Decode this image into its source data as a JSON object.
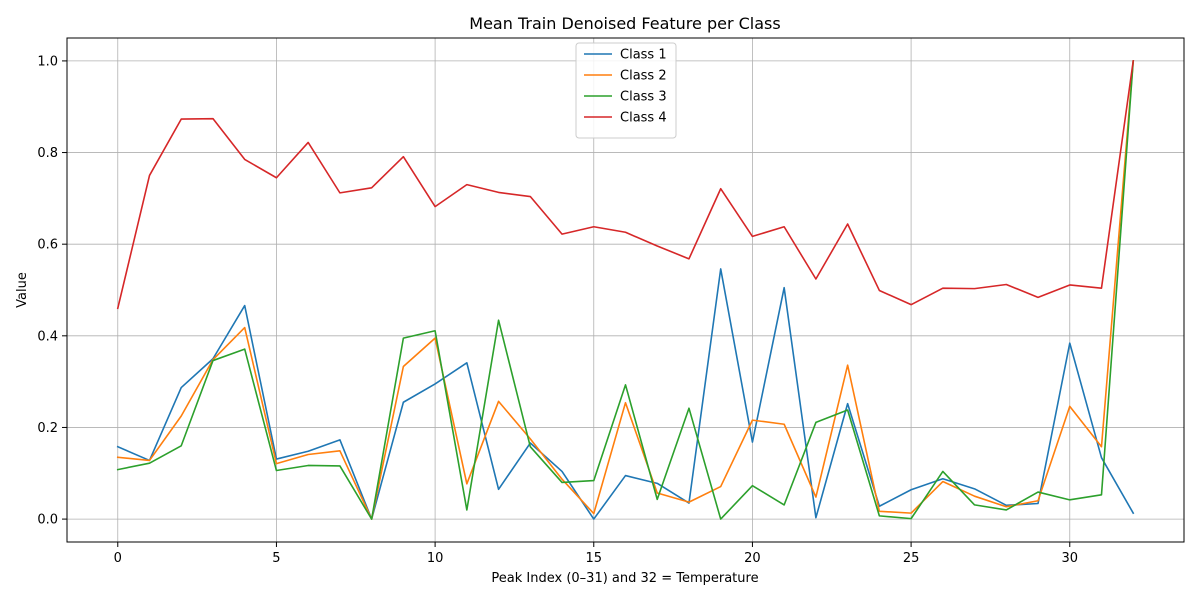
{
  "chart_data": {
    "type": "line",
    "title": "Mean Train Denoised Feature per Class",
    "xlabel": "Peak Index (0–31) and 32 = Temperature",
    "ylabel": "Value",
    "xlim": [
      -1.6,
      33.6
    ],
    "ylim": [
      -0.05,
      1.05
    ],
    "xticks": [
      0,
      5,
      10,
      15,
      20,
      25,
      30
    ],
    "yticks": [
      0.0,
      0.2,
      0.4,
      0.6,
      0.8,
      1.0
    ],
    "xtick_labels": [
      "0",
      "5",
      "10",
      "15",
      "20",
      "25",
      "30"
    ],
    "ytick_labels": [
      "0.0",
      "0.2",
      "0.4",
      "0.6",
      "0.8",
      "1.0"
    ],
    "grid": true,
    "legend": "upper center",
    "x": [
      0,
      1,
      2,
      3,
      4,
      5,
      6,
      7,
      8,
      9,
      10,
      11,
      12,
      13,
      14,
      15,
      16,
      17,
      18,
      19,
      20,
      21,
      22,
      23,
      24,
      25,
      26,
      27,
      28,
      29,
      30,
      31,
      32
    ],
    "series": [
      {
        "name": "Class 1",
        "color": "#1f77b4",
        "values": [
          0.158,
          0.128,
          0.287,
          0.35,
          0.466,
          0.131,
          0.148,
          0.173,
          0.0,
          0.255,
          0.295,
          0.341,
          0.065,
          0.166,
          0.104,
          0.0,
          0.095,
          0.078,
          0.035,
          0.546,
          0.168,
          0.505,
          0.003,
          0.252,
          0.028,
          0.064,
          0.088,
          0.066,
          0.03,
          0.034,
          0.384,
          0.134,
          0.013
        ]
      },
      {
        "name": "Class 2",
        "color": "#ff7f0e",
        "values": [
          0.135,
          0.128,
          0.225,
          0.348,
          0.418,
          0.121,
          0.141,
          0.149,
          0.0,
          0.333,
          0.395,
          0.077,
          0.257,
          0.175,
          0.087,
          0.012,
          0.254,
          0.057,
          0.037,
          0.071,
          0.216,
          0.207,
          0.048,
          0.336,
          0.017,
          0.013,
          0.082,
          0.05,
          0.027,
          0.04,
          0.246,
          0.158,
          1.0
        ]
      },
      {
        "name": "Class 3",
        "color": "#2ca02c",
        "values": [
          0.108,
          0.122,
          0.16,
          0.346,
          0.371,
          0.106,
          0.117,
          0.116,
          0.0,
          0.395,
          0.411,
          0.02,
          0.434,
          0.158,
          0.08,
          0.084,
          0.293,
          0.043,
          0.242,
          0.0,
          0.073,
          0.031,
          0.211,
          0.238,
          0.007,
          0.001,
          0.104,
          0.031,
          0.02,
          0.059,
          0.042,
          0.053,
          1.0
        ]
      },
      {
        "name": "Class 4",
        "color": "#d62728",
        "values": [
          0.46,
          0.75,
          0.873,
          0.874,
          0.785,
          0.745,
          0.822,
          0.712,
          0.723,
          0.791,
          0.682,
          0.73,
          0.713,
          0.704,
          0.622,
          0.638,
          0.626,
          0.596,
          0.568,
          0.721,
          0.617,
          0.638,
          0.524,
          0.644,
          0.499,
          0.468,
          0.504,
          0.503,
          0.512,
          0.484,
          0.511,
          0.504,
          1.0
        ]
      }
    ]
  }
}
